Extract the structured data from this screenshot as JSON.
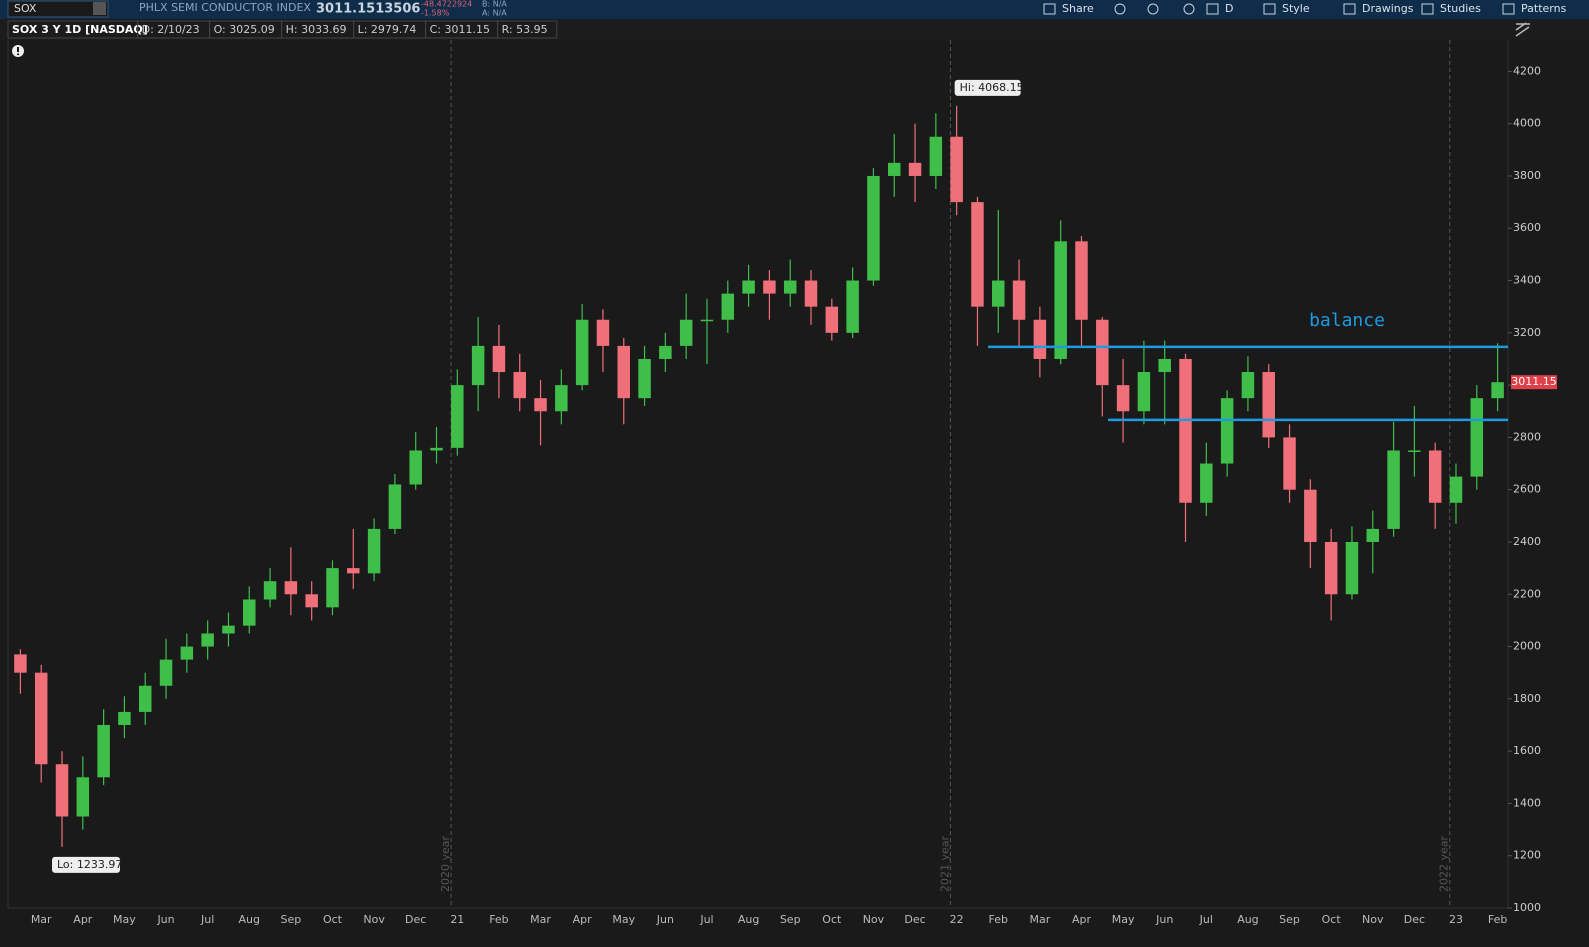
{
  "toolbar": {
    "symbol": "SOX",
    "description": "PHLX SEMI CONDUCTOR INDEX",
    "last": "3011.1513506",
    "change": "-48.4722924",
    "change_pct": "-1.58%",
    "bid": "B: N/A",
    "ask": "A: N/A",
    "buttons": [
      "Share",
      "D",
      "Style",
      "Drawings",
      "Studies",
      "Patterns"
    ]
  },
  "info_bar": [
    "SOX 3 Y 1D [NASDAQ]",
    "D: 2/10/23",
    "O: 3025.09",
    "H: 3033.69",
    "L: 2979.74",
    "C: 3011.15",
    "R: 53.95"
  ],
  "chart_data": {
    "type": "candlestick",
    "categories": [
      null,
      "Mar",
      null,
      "Apr",
      null,
      "May",
      null,
      "Jun",
      null,
      "Jul",
      null,
      "Aug",
      null,
      "Sep",
      null,
      "Oct",
      null,
      "Nov",
      null,
      "Dec",
      null,
      "21",
      null,
      "Feb",
      null,
      "Mar",
      null,
      "Apr",
      null,
      "May",
      null,
      "Jun",
      null,
      "Jul",
      null,
      "Aug",
      null,
      "Sep",
      null,
      "Oct",
      null,
      "Nov",
      null,
      "Dec",
      null,
      "22",
      null,
      "Feb",
      null,
      "Mar",
      null,
      "Apr",
      null,
      "May",
      null,
      "Jun",
      null,
      "Jul",
      null,
      "Aug",
      null,
      "Sep",
      null,
      "Oct",
      null,
      "Nov",
      null,
      "Dec",
      null,
      "23",
      null,
      "Feb"
    ],
    "open": [
      1970,
      1900,
      1550,
      1350,
      1500,
      1700,
      1750,
      1850,
      1950,
      2000,
      2050,
      2080,
      2180,
      2250,
      2200,
      2150,
      2300,
      2280,
      2450,
      2620,
      2750,
      2760,
      3000,
      3150,
      3050,
      2950,
      2900,
      3000,
      3250,
      3150,
      2950,
      3100,
      3150,
      3250,
      3250,
      3350,
      3400,
      3350,
      3400,
      3300,
      3200,
      3400,
      3800,
      3850,
      3800,
      3950,
      3700,
      3300,
      3400,
      3250,
      3100,
      3550,
      3250,
      3000,
      2900,
      3050,
      3100,
      2550,
      2700,
      2950,
      3050,
      2800,
      2600,
      2400,
      2200,
      2400,
      2450,
      2750,
      2750,
      2550,
      2650,
      2950
    ],
    "high": [
      1990,
      1930,
      1600,
      1580,
      1760,
      1810,
      1900,
      2030,
      2050,
      2100,
      2130,
      2230,
      2300,
      2380,
      2250,
      2330,
      2450,
      2490,
      2660,
      2820,
      2840,
      3060,
      3260,
      3230,
      3120,
      3020,
      3060,
      3310,
      3290,
      3180,
      3150,
      3200,
      3350,
      3330,
      3400,
      3460,
      3440,
      3480,
      3440,
      3330,
      3450,
      3830,
      3960,
      4000,
      4040,
      4068.15,
      3720,
      3670,
      3480,
      3300,
      3630,
      3570,
      3260,
      3100,
      3170,
      3170,
      3120,
      2780,
      2980,
      3110,
      3080,
      2850,
      2640,
      2450,
      2460,
      2520,
      2860,
      2920,
      2780,
      2700,
      3000,
      3160
    ],
    "low": [
      1820,
      1480,
      1233.97,
      1300,
      1470,
      1650,
      1700,
      1800,
      1900,
      1950,
      2000,
      2050,
      2150,
      2120,
      2100,
      2120,
      2220,
      2250,
      2430,
      2600,
      2700,
      2730,
      2900,
      2950,
      2900,
      2770,
      2850,
      2980,
      3050,
      2850,
      2920,
      3050,
      3100,
      3080,
      3200,
      3300,
      3250,
      3300,
      3230,
      3170,
      3180,
      3380,
      3720,
      3700,
      3750,
      3650,
      3150,
      3200,
      3150,
      3030,
      3080,
      3150,
      2880,
      2780,
      2850,
      2850,
      2400,
      2500,
      2650,
      2900,
      2760,
      2550,
      2300,
      2100,
      2180,
      2280,
      2420,
      2650,
      2450,
      2470,
      2600,
      2900
    ],
    "close": [
      1900,
      1550,
      1350,
      1500,
      1700,
      1750,
      1850,
      1950,
      2000,
      2050,
      2080,
      2180,
      2250,
      2200,
      2150,
      2300,
      2280,
      2450,
      2620,
      2750,
      2760,
      3000,
      3150,
      3050,
      2950,
      2900,
      3000,
      3250,
      3150,
      2950,
      3100,
      3150,
      3250,
      3250,
      3350,
      3400,
      3350,
      3400,
      3300,
      3200,
      3400,
      3800,
      3850,
      3800,
      3950,
      3700,
      3300,
      3400,
      3250,
      3100,
      3550,
      3250,
      3000,
      2900,
      3050,
      3100,
      2550,
      2700,
      2950,
      3050,
      2800,
      2600,
      2400,
      2200,
      2400,
      2450,
      2750,
      2750,
      2550,
      2650,
      2950,
      3011.15
    ],
    "up_color": "#3fbf4a",
    "down_color": "#f0707a",
    "ylim": [
      1000,
      4320
    ],
    "yticks": [
      1000,
      1200,
      1400,
      1600,
      1800,
      2000,
      2200,
      2400,
      2600,
      2800,
      3000,
      3200,
      3400,
      3600,
      3800,
      4000,
      4200
    ],
    "high_label": "Hi: 4068.15",
    "low_label": "Lo: 1233.97",
    "last_price_label": "3011.15",
    "year_markers": [
      "2020 year",
      "2021 year",
      "2022 year"
    ],
    "hlines": [
      {
        "value": 3146,
        "color": "#1e9be0"
      },
      {
        "value": 2867,
        "color": "#1e9be0"
      }
    ],
    "annotation": "balance"
  }
}
